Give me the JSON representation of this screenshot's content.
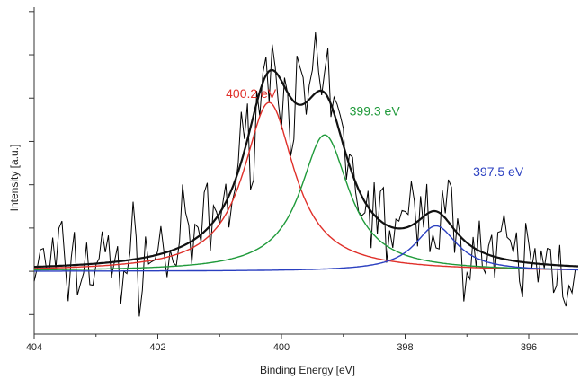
{
  "chart_data": {
    "type": "line",
    "title": "",
    "xlabel": "Binding Energy [eV]",
    "ylabel": "Intensity [a.u.]",
    "x_reversed": true,
    "xlim": [
      404,
      395.2
    ],
    "ylim": [
      -1.45,
      6.1
    ],
    "xticks": [
      404,
      402,
      400,
      398,
      396
    ],
    "xtick_labels": [
      "404",
      "402",
      "400",
      "398",
      "396"
    ],
    "y_ticks_unlabeled": [
      -1,
      0,
      1,
      2,
      3,
      4,
      5,
      6
    ],
    "grid": false,
    "legend": "none",
    "components": [
      {
        "name": "400.2 eV",
        "center": 400.2,
        "height": 3.9,
        "width": 0.5,
        "color": "#e0302a"
      },
      {
        "name": "399.3 eV",
        "center": 399.3,
        "height": 3.15,
        "width": 0.48,
        "color": "#1f9a3a"
      },
      {
        "name": "397.5 eV",
        "center": 397.5,
        "height": 1.05,
        "width": 0.42,
        "color": "#2a3fc0"
      }
    ],
    "envelope": {
      "color": "#111111"
    },
    "raw_data": {
      "color": "#000000"
    },
    "annotations": [
      {
        "text": "400.2 eV",
        "x": 400.9,
        "y": 4.0,
        "color": "#e0302a"
      },
      {
        "text": "399.3 eV",
        "x": 398.9,
        "y": 3.6,
        "color": "#1f9a3a"
      },
      {
        "text": "397.5 eV",
        "x": 396.9,
        "y": 2.2,
        "color": "#2a3fc0"
      }
    ]
  }
}
